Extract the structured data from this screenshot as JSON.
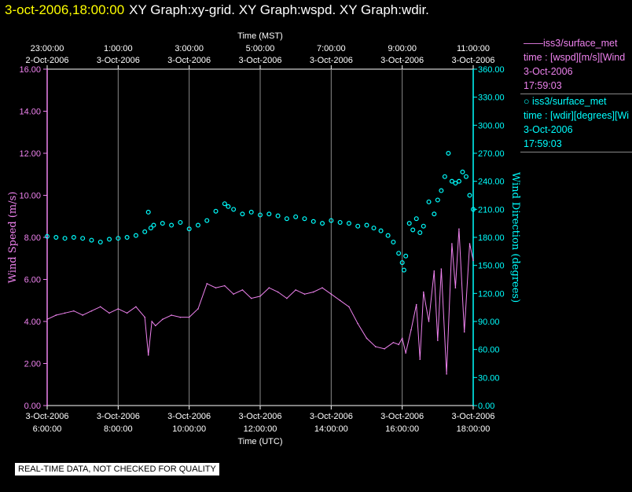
{
  "window": {
    "title_time": "3-oct-2006,18:00:00",
    "title_text": "XY Graph:xy-grid.  XY Graph:wspd.  XY Graph:wdir."
  },
  "footer_note": "REAL-TIME DATA, NOT CHECKED FOR QUALITY",
  "legend": [
    {
      "marker": "——",
      "name": "iss3/surface_met",
      "detail": "time : [wspd][m/s][Wind",
      "date": "3-Oct-2006",
      "time": "17:59:03",
      "color": "#ee82ee"
    },
    {
      "marker": "○",
      "name": "iss3/surface_met",
      "detail": "time : [wdir][degrees][Wi",
      "date": "3-Oct-2006",
      "time": "17:59:03",
      "color": "#00ffff"
    }
  ],
  "chart_data": {
    "type": "line",
    "top_axis": {
      "label": "Time (MST)",
      "ticks": [
        {
          "time": "23:00:00",
          "date": "2-Oct-2006",
          "x": 6
        },
        {
          "time": "1:00:00",
          "date": "3-Oct-2006",
          "x": 8
        },
        {
          "time": "3:00:00",
          "date": "3-Oct-2006",
          "x": 10
        },
        {
          "time": "5:00:00",
          "date": "3-Oct-2006",
          "x": 12
        },
        {
          "time": "7:00:00",
          "date": "3-Oct-2006",
          "x": 14
        },
        {
          "time": "9:00:00",
          "date": "3-Oct-2006",
          "x": 16
        },
        {
          "time": "11:00:00",
          "date": "3-Oct-2006",
          "x": 18
        }
      ]
    },
    "bottom_axis": {
      "label": "Time (UTC)",
      "xlim": [
        6,
        18
      ],
      "ticks": [
        {
          "date": "3-Oct-2006",
          "time": "6:00:00",
          "x": 6
        },
        {
          "date": "3-Oct-2006",
          "time": "8:00:00",
          "x": 8
        },
        {
          "date": "3-Oct-2006",
          "time": "10:00:00",
          "x": 10
        },
        {
          "date": "3-Oct-2006",
          "time": "12:00:00",
          "x": 12
        },
        {
          "date": "3-Oct-2006",
          "time": "14:00:00",
          "x": 14
        },
        {
          "date": "3-Oct-2006",
          "time": "16:00:00",
          "x": 16
        },
        {
          "date": "3-Oct-2006",
          "time": "18:00:00",
          "x": 18
        }
      ]
    },
    "left_axis": {
      "label": "Wind Speed (m/s)",
      "ylim": [
        0,
        16
      ],
      "ticks": [
        "0.00",
        "2.00",
        "4.00",
        "6.00",
        "8.00",
        "10.00",
        "12.00",
        "14.00",
        "16.00"
      ],
      "color": "#ee82ee"
    },
    "right_axis": {
      "label": "Wind Direction (degrees)",
      "ylim": [
        0,
        360
      ],
      "ticks": [
        "0.00",
        "30.00",
        "60.00",
        "90.00",
        "120.00",
        "150.00",
        "180.00",
        "210.00",
        "240.00",
        "270.00",
        "300.00",
        "330.00",
        "360.00"
      ],
      "color": "#00ffff"
    },
    "grid": "vertical",
    "series": [
      {
        "name": "iss3/surface_met",
        "type": "line",
        "axis": "left",
        "color": "#ee82ee",
        "x": [
          6.0,
          6.25,
          6.5,
          6.75,
          7.0,
          7.25,
          7.5,
          7.75,
          8.0,
          8.25,
          8.5,
          8.75,
          8.85,
          8.95,
          9.05,
          9.25,
          9.5,
          9.75,
          10.0,
          10.25,
          10.5,
          10.75,
          11.0,
          11.25,
          11.5,
          11.75,
          12.0,
          12.25,
          12.5,
          12.75,
          13.0,
          13.25,
          13.5,
          13.75,
          14.0,
          14.25,
          14.5,
          14.75,
          15.0,
          15.25,
          15.5,
          15.75,
          15.9,
          16.0,
          16.1,
          16.25,
          16.4,
          16.5,
          16.6,
          16.75,
          16.9,
          17.0,
          17.1,
          17.25,
          17.4,
          17.5,
          17.6,
          17.75,
          17.9,
          18.0
        ],
        "y": [
          4.1,
          4.3,
          4.4,
          4.5,
          4.3,
          4.5,
          4.7,
          4.4,
          4.6,
          4.4,
          4.7,
          4.2,
          2.4,
          4.0,
          3.8,
          4.1,
          4.3,
          4.2,
          4.2,
          4.6,
          5.8,
          5.6,
          5.7,
          5.3,
          5.5,
          5.1,
          5.2,
          5.6,
          5.4,
          5.1,
          5.5,
          5.3,
          5.4,
          5.6,
          5.3,
          5.0,
          4.7,
          3.9,
          3.2,
          2.8,
          2.7,
          3.0,
          2.9,
          3.2,
          2.5,
          3.6,
          4.8,
          2.2,
          5.4,
          4.0,
          6.4,
          3.1,
          6.5,
          1.5,
          7.7,
          5.6,
          8.4,
          3.5,
          7.7,
          6.9
        ]
      },
      {
        "name": "iss3/surface_met",
        "type": "scatter",
        "axis": "right",
        "color": "#00ffff",
        "x": [
          6.0,
          6.25,
          6.5,
          6.75,
          7.0,
          7.25,
          7.5,
          7.75,
          8.0,
          8.25,
          8.5,
          8.75,
          8.85,
          8.92,
          9.0,
          9.25,
          9.5,
          9.75,
          10.0,
          10.25,
          10.5,
          10.75,
          11.0,
          11.1,
          11.25,
          11.5,
          11.75,
          12.0,
          12.25,
          12.5,
          12.75,
          13.0,
          13.25,
          13.5,
          13.75,
          14.0,
          14.25,
          14.5,
          14.75,
          15.0,
          15.2,
          15.4,
          15.6,
          15.75,
          15.9,
          16.0,
          16.05,
          16.1,
          16.2,
          16.3,
          16.4,
          16.5,
          16.6,
          16.75,
          16.9,
          17.0,
          17.1,
          17.2,
          17.3,
          17.4,
          17.5,
          17.6,
          17.7,
          17.8,
          17.9,
          18.0
        ],
        "y": [
          181,
          180,
          179,
          180,
          179,
          177,
          175,
          178,
          179,
          180,
          182,
          186,
          207,
          190,
          193,
          195,
          193,
          196,
          189,
          193,
          198,
          208,
          216,
          213,
          210,
          205,
          207,
          204,
          205,
          203,
          200,
          202,
          200,
          197,
          195,
          198,
          196,
          195,
          192,
          193,
          190,
          187,
          182,
          175,
          163,
          153,
          145,
          160,
          195,
          188,
          200,
          185,
          192,
          218,
          205,
          220,
          230,
          245,
          270,
          240,
          238,
          240,
          250,
          245,
          225,
          210
        ]
      }
    ]
  }
}
